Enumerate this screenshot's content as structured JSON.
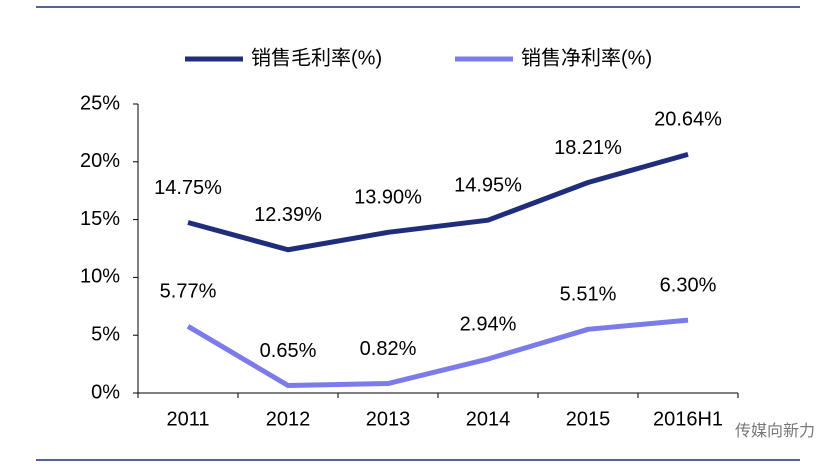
{
  "chart_data": {
    "type": "line",
    "categories": [
      "2011",
      "2012",
      "2013",
      "2014",
      "2015",
      "2016H1"
    ],
    "series": [
      {
        "name": "销售毛利率(%)",
        "color": "#1f2d7b",
        "values": [
          14.75,
          12.39,
          13.9,
          14.95,
          18.21,
          20.64
        ],
        "value_labels": [
          "14.75%",
          "12.39%",
          "13.90%",
          "14.95%",
          "18.21%",
          "20.64%"
        ]
      },
      {
        "name": "销售净利率(%)",
        "color": "#7b7bea",
        "values": [
          5.77,
          0.65,
          0.82,
          2.94,
          5.51,
          6.3
        ],
        "value_labels": [
          "5.77%",
          "0.65%",
          "0.82%",
          "2.94%",
          "5.51%",
          "6.30%"
        ]
      }
    ],
    "ylim": [
      0,
      25
    ],
    "yticks": [
      {
        "value": 0,
        "label": "0%"
      },
      {
        "value": 5,
        "label": "5%"
      },
      {
        "value": 10,
        "label": "10%"
      },
      {
        "value": 15,
        "label": "15%"
      },
      {
        "value": 20,
        "label": "20%"
      },
      {
        "value": 25,
        "label": "25%"
      }
    ],
    "legend": "top",
    "watermark": "传媒向新力"
  }
}
